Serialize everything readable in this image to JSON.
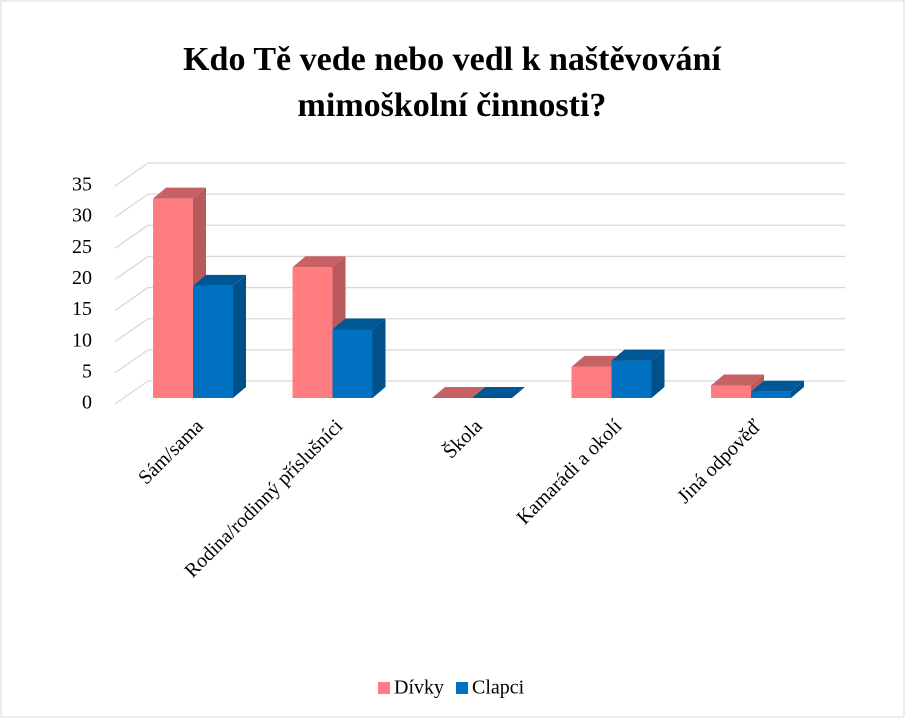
{
  "chart_data": {
    "type": "bar3d",
    "title": [
      "Kdo Tě vede nebo vedl k naštěvování",
      "mimoškolní činnosti?"
    ],
    "categories": [
      "Sám/sama",
      "Rodina/rodinný příslušníci",
      "Škola",
      "Kamarádi a okolí",
      "Jiná odpověď"
    ],
    "series": [
      {
        "name": "Dívky",
        "color": "#ff7c80",
        "values": [
          32,
          21,
          0,
          5,
          2
        ]
      },
      {
        "name": "Clapci",
        "color": "#0070c0",
        "values": [
          18,
          11,
          0,
          6,
          1
        ]
      }
    ],
    "ylim": [
      0,
      35
    ],
    "yticks": [
      0,
      5,
      10,
      15,
      20,
      25,
      30,
      35
    ],
    "grid": true,
    "legend": "bottom"
  }
}
